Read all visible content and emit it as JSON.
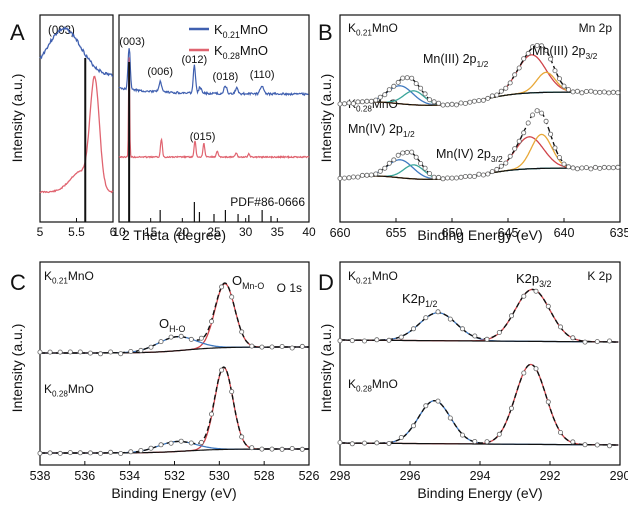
{
  "chart_data": [
    {
      "panel": "A",
      "type": "line",
      "ylabel": "Intensity (a.u.)",
      "xlabel": "2 Theta (degree)",
      "legend": [
        "K0.21MnO",
        "K0.28MnO"
      ],
      "legend_placement": "top-right",
      "colors": {
        "K0.21MnO": "#4060b0",
        "K0.28MnO": "#e06470"
      },
      "left": {
        "xlim": [
          5,
          6
        ],
        "ticks": [
          "5",
          "5.5",
          "6"
        ],
        "label": "(003)",
        "series": [
          {
            "name": "K0.21MnO",
            "peak_x": 5.33,
            "ref_line_x": 5.62
          },
          {
            "name": "K0.28MnO",
            "peak_x": 5.75,
            "ref_line_x": 5.62
          }
        ]
      },
      "right": {
        "xlim": [
          10,
          40
        ],
        "ticks": [
          "10",
          "15",
          "20",
          "25",
          "30",
          "35",
          "40"
        ],
        "K0.21MnO_peaks": [
          {
            "label": "(003)",
            "x": 11.6
          },
          {
            "label": "(006)",
            "x": 16.5
          },
          {
            "label": "(012)",
            "x": 21.9
          },
          {
            "label": "(018)",
            "x": 26.8
          },
          {
            "label": "(110)",
            "x": 32.6
          }
        ],
        "K0.28MnO_peaks": [
          {
            "label": "",
            "x": 11.6
          },
          {
            "label": "",
            "x": 16.7
          },
          {
            "label": "(015)",
            "x": 22.0
          },
          {
            "label": "",
            "x": 23.4
          }
        ],
        "reference": "PDF#86-0666",
        "reference_lines": [
          11.6,
          16.5,
          21.9,
          22.7,
          25.0,
          26.8,
          28.8,
          30.5,
          32.6,
          34.0
        ]
      }
    },
    {
      "panel": "B",
      "type": "line",
      "title": "Mn 2p",
      "xlabel": "Binding Energy (eV)",
      "ylabel": "Intensity (a.u.)",
      "xlim": [
        660,
        635
      ],
      "ticks": [
        "660",
        "655",
        "650",
        "645",
        "640",
        "635"
      ],
      "samples": [
        "K0.21MnO",
        "K0.28MnO"
      ],
      "labels": [
        "Mn(III) 2p1/2",
        "Mn(III) 2p3/2",
        "Mn(IV) 2p1/2",
        "Mn(IV) 2p3/2"
      ],
      "components": [
        {
          "name": "Mn(III) 2p1/2",
          "center": 654.1,
          "color": "#3f79c0"
        },
        {
          "name": "Mn(IV) 2p1/2",
          "center": 653.2,
          "color": "#3aa59a"
        },
        {
          "name": "Mn(IV) 2p3/2",
          "center": 642.8,
          "color": "#d0444a"
        },
        {
          "name": "Mn(III) 2p3/2",
          "center": 641.7,
          "color": "#e8a838"
        }
      ]
    },
    {
      "panel": "C",
      "type": "line",
      "title": "O 1s",
      "xlabel": "Binding Energy (eV)",
      "ylabel": "Intensity (a.u.)",
      "xlim": [
        538,
        526
      ],
      "ticks": [
        "538",
        "536",
        "534",
        "532",
        "530",
        "528",
        "526"
      ],
      "samples": [
        "K0.21MnO",
        "K0.28MnO"
      ],
      "labels": [
        "O_Mn-O",
        "O_H-O"
      ],
      "components": [
        {
          "name": "O_Mn-O",
          "center": 529.7,
          "color": "#d0444a"
        },
        {
          "name": "O_H-O",
          "center": 531.9,
          "color": "#3f79c0"
        }
      ]
    },
    {
      "panel": "D",
      "type": "line",
      "title": "K 2p",
      "xlabel": "Binding Energy (eV)",
      "ylabel": "Intensity (a.u.)",
      "xlim": [
        298,
        290
      ],
      "ticks": [
        "298",
        "296",
        "294",
        "292",
        "290"
      ],
      "samples": [
        "K0.21MnO",
        "K0.28MnO"
      ],
      "labels": [
        "K2p1/2",
        "K2p3/2"
      ],
      "components": [
        {
          "name": "K2p1/2",
          "center": 295.2,
          "color": "#3f79c0"
        },
        {
          "name": "K2p3/2",
          "center": 292.5,
          "color": "#d0444a"
        }
      ]
    }
  ]
}
